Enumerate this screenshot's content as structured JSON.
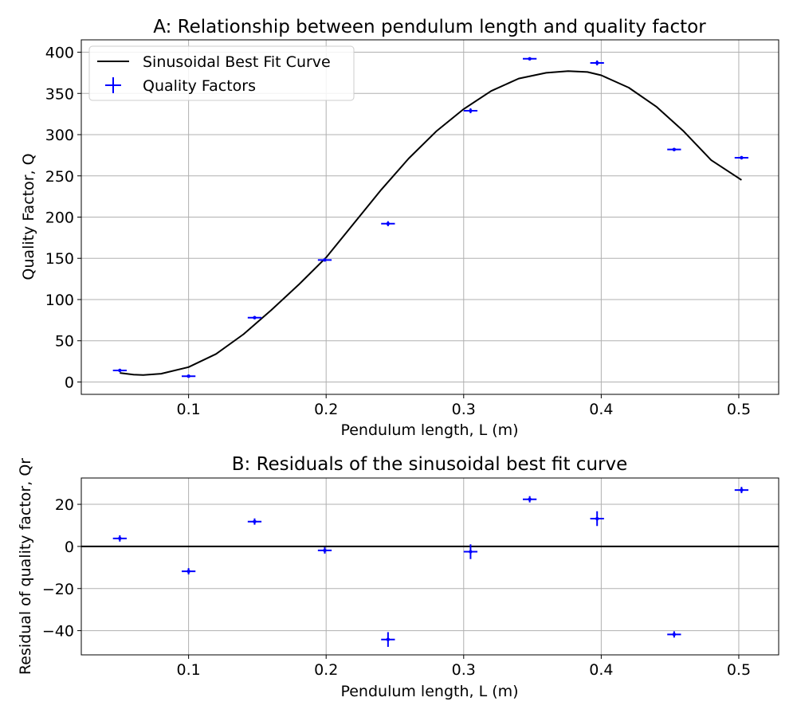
{
  "chart_data": [
    {
      "id": "A",
      "type": "scatter",
      "title": "A: Relationship between pendulum length and quality factor",
      "xlabel": "Pendulum length, L (m)",
      "ylabel": "Quality Factor, Q",
      "xlim": [
        0.022,
        0.529
      ],
      "ylim": [
        -15,
        415
      ],
      "xticks": [
        0.1,
        0.2,
        0.3,
        0.4,
        0.5
      ],
      "xticklabels": [
        "0.1",
        "0.2",
        "0.3",
        "0.4",
        "0.5"
      ],
      "yticks": [
        0,
        50,
        100,
        150,
        200,
        250,
        300,
        350,
        400
      ],
      "yticklabels": [
        "0",
        "50",
        "100",
        "150",
        "200",
        "250",
        "300",
        "350",
        "400"
      ],
      "grid": true,
      "legend": {
        "position": "upper-left",
        "entries": [
          "Sinusoidal Best Fit Curve",
          "Quality Factors"
        ]
      },
      "series": [
        {
          "name": "Quality Factors",
          "kind": "errorbar",
          "color": "#0000ff",
          "x": [
            0.05,
            0.1,
            0.148,
            0.199,
            0.245,
            0.305,
            0.348,
            0.397,
            0.453,
            0.502
          ],
          "y": [
            14,
            7,
            78,
            148,
            192,
            329,
            392,
            387,
            282,
            272
          ],
          "xerr": [
            0.005,
            0.005,
            0.005,
            0.005,
            0.005,
            0.005,
            0.005,
            0.005,
            0.005,
            0.005
          ],
          "yerr": [
            1,
            1,
            1,
            1.5,
            3,
            3,
            1.5,
            3,
            1.5,
            2
          ]
        },
        {
          "name": "Sinusoidal Best Fit Curve",
          "kind": "line",
          "color": "#000000",
          "x": [
            0.05,
            0.06,
            0.067,
            0.08,
            0.1,
            0.12,
            0.14,
            0.16,
            0.18,
            0.2,
            0.22,
            0.24,
            0.26,
            0.28,
            0.3,
            0.32,
            0.34,
            0.36,
            0.376,
            0.39,
            0.4,
            0.42,
            0.44,
            0.46,
            0.48,
            0.502
          ],
          "y": [
            11,
            9,
            8.5,
            10,
            18,
            34,
            58,
            87,
            118,
            151,
            192,
            233,
            271,
            304,
            331,
            353,
            368,
            375,
            377,
            376,
            372,
            357,
            334,
            304,
            269,
            245
          ]
        }
      ]
    },
    {
      "id": "B",
      "type": "scatter",
      "title": "B: Residuals of the sinusoidal best fit curve",
      "xlabel": "Pendulum length, L (m)",
      "ylabel": "Residual of quality factor, Qr",
      "xlim": [
        0.022,
        0.529
      ],
      "ylim": [
        -51.5,
        32.5
      ],
      "xticks": [
        0.1,
        0.2,
        0.3,
        0.4,
        0.5
      ],
      "xticklabels": [
        "0.1",
        "0.2",
        "0.3",
        "0.4",
        "0.5"
      ],
      "yticks": [
        -40,
        -20,
        0,
        20
      ],
      "yticklabels": [
        "−40",
        "−20",
        "0",
        "20"
      ],
      "grid": true,
      "zero_line": true,
      "series": [
        {
          "name": "",
          "kind": "errorbar",
          "color": "#0000ff",
          "x": [
            0.05,
            0.1,
            0.148,
            0.199,
            0.245,
            0.305,
            0.348,
            0.397,
            0.453,
            0.502
          ],
          "y": [
            3.8,
            -11.8,
            11.8,
            -1.9,
            -44.2,
            -2.5,
            22.4,
            13.2,
            -41.8,
            26.8
          ],
          "xerr": [
            0.005,
            0.005,
            0.005,
            0.005,
            0.005,
            0.005,
            0.005,
            0.005,
            0.005,
            0.005
          ],
          "yerr": [
            1.5,
            1.5,
            1.5,
            1.5,
            3.5,
            3.5,
            1.5,
            3.5,
            1.5,
            1.5
          ]
        }
      ]
    }
  ]
}
